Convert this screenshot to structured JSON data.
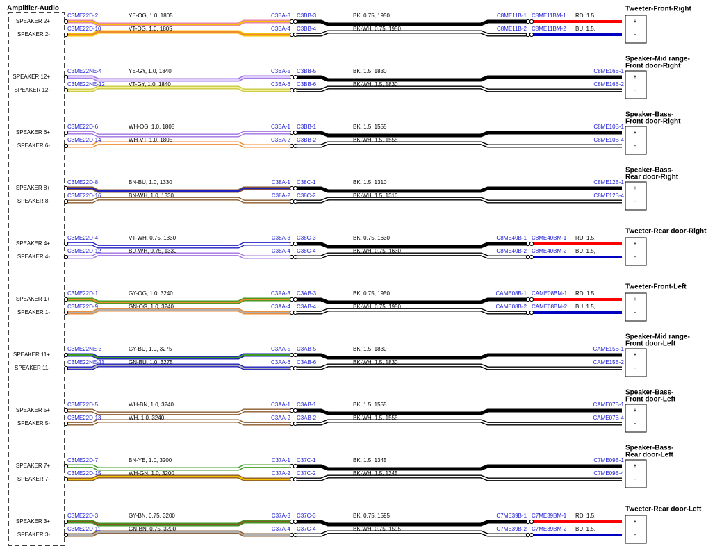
{
  "amplifier": {
    "label": "Amplifier-Audio"
  },
  "circuits": [
    {
      "device": [
        "Tweeter-Front-Right"
      ],
      "pins": [
        "+",
        "-"
      ],
      "wires": [
        {
          "pin": "SPEAKER 2+",
          "amp_connector": "C3ME22D-2",
          "harness_wire": "YE-OG, 1.0, 1805",
          "harness_color": [
            "#e87fb0",
            "#f5c400"
          ],
          "inline_left": "C3BA-3",
          "inline_right": "C3BB-3",
          "door_wire": "BK, 0.75, 1950",
          "door_color": [
            "#000000",
            "#000000"
          ],
          "device_connector": "C8ME11B-1",
          "tweeter_connector": "C8ME11BM-1",
          "tweeter_wire": "RD, 1.5,",
          "tweeter_color": "#ff0000"
        },
        {
          "pin": "SPEAKER 2-",
          "amp_connector": "C3ME22D-10",
          "harness_wire": "VT-OG, 1.0, 1805",
          "harness_color": [
            "#f5c400",
            "#f08a30"
          ],
          "inline_left": "C3BA-4",
          "inline_right": "C3BB-4",
          "door_wire": "BK-WH, 0.75, 1950",
          "door_color": [
            "#000000",
            "#ffffff"
          ],
          "device_connector": "C8ME11B-2",
          "tweeter_connector": "C8ME11BM-2",
          "tweeter_wire": "BU, 1.5,",
          "tweeter_color": "#0000c0"
        }
      ]
    },
    {
      "device": [
        "Speaker-Mid range-",
        "Front door-Right"
      ],
      "pins": [
        "+",
        "-"
      ],
      "wires": [
        {
          "pin": "SPEAKER 12+",
          "amp_connector": "C3ME22NE-4",
          "harness_wire": "YE-GY, 1.0, 1840",
          "harness_color": [
            "#a070e0",
            "#e0d0ff"
          ],
          "inline_left": "C3BA-5",
          "inline_right": "C3BB-5",
          "door_wire": "BK, 1.5, 1830",
          "door_color": [
            "#000000",
            "#000000"
          ],
          "device_connector": "C8ME16B-1"
        },
        {
          "pin": "SPEAKER 12-",
          "amp_connector": "C3ME22NE-12",
          "harness_wire": "VT-GY, 1.0, 1840",
          "harness_color": [
            "#c8c840",
            "#f5f0a0"
          ],
          "inline_left": "C3BA-6",
          "inline_right": "C3BB-6",
          "door_wire": "BK-WH, 1.5, 1830",
          "door_color": [
            "#000000",
            "#ffffff"
          ],
          "device_connector": "C8ME16B-2"
        }
      ]
    },
    {
      "device": [
        "Speaker-Bass-",
        "Front door-Right"
      ],
      "pins": [
        "+",
        "-"
      ],
      "wires": [
        {
          "pin": "SPEAKER 6+",
          "amp_connector": "C3ME22D-6",
          "harness_wire": "WH-OG, 1.0, 1805",
          "harness_color": [
            "#a070e0",
            "#ffffff"
          ],
          "inline_left": "C3BA-1",
          "inline_right": "C3BB-1",
          "door_wire": "BK, 1.5, 1555",
          "door_color": [
            "#000000",
            "#000000"
          ],
          "device_connector": "C8ME10B-1"
        },
        {
          "pin": "SPEAKER 6-",
          "amp_connector": "C3ME22D-14",
          "harness_wire": "WH-VT, 1.0, 1805",
          "harness_color": [
            "#f08a30",
            "#ffffff"
          ],
          "inline_left": "C3BA-2",
          "inline_right": "C3BB-2",
          "door_wire": "BK-WH, 1.5, 1555",
          "door_color": [
            "#000000",
            "#ffffff"
          ],
          "device_connector": "C8ME10B-4"
        }
      ]
    },
    {
      "device": [
        "Speaker-Bass-",
        "Rear door-Right"
      ],
      "pins": [
        "+",
        "-"
      ],
      "wires": [
        {
          "pin": "SPEAKER 8+",
          "amp_connector": "C3ME22D-8",
          "harness_wire": "BN-BU, 1.0, 1330",
          "harness_color": [
            "#8b5a2b",
            "#2020c0"
          ],
          "inline_left": "C38A-1",
          "inline_right": "C38C-1",
          "door_wire": "BK, 1.5, 1310",
          "door_color": [
            "#000000",
            "#000000"
          ],
          "device_connector": "C8ME12B-1"
        },
        {
          "pin": "SPEAKER 8-",
          "amp_connector": "C3ME22D-16",
          "harness_wire": "BN-WH, 1.0, 1330",
          "harness_color": [
            "#8b5a2b",
            "#ffffff"
          ],
          "inline_left": "C38A-2",
          "inline_right": "C38C-2",
          "door_wire": "BK-WH, 1.5, 1310",
          "door_color": [
            "#000000",
            "#ffffff"
          ],
          "device_connector": "C8ME12B-4"
        }
      ]
    },
    {
      "device": [
        "Tweeter-Rear door-Right"
      ],
      "pins": [
        "+",
        "-"
      ],
      "wires": [
        {
          "pin": "SPEAKER 4+",
          "amp_connector": "C3ME22D-4",
          "harness_wire": "VT-WH, 0.75, 1330",
          "harness_color": [
            "#2020c0",
            "#ffffff"
          ],
          "inline_left": "C38A-3",
          "inline_right": "C38C-3",
          "door_wire": "BK, 0.75, 1630",
          "door_color": [
            "#000000",
            "#000000"
          ],
          "device_connector": "C8ME40B-1",
          "tweeter_connector": "C8ME40BM-1",
          "tweeter_wire": "RD, 1.5,",
          "tweeter_color": "#ff0000"
        },
        {
          "pin": "SPEAKER 4-",
          "amp_connector": "C3ME22D-12",
          "harness_wire": "BU-WH, 0.75, 1330",
          "harness_color": [
            "#a070e0",
            "#ffffff"
          ],
          "inline_left": "C38A-4",
          "inline_right": "C38C-4",
          "door_wire": "BK-WH, 0.75, 1630",
          "door_color": [
            "#000000",
            "#ffffff"
          ],
          "device_connector": "C8ME40B-2",
          "tweeter_connector": "C8ME40BM-2",
          "tweeter_wire": "BU, 1.5,",
          "tweeter_color": "#0000c0"
        }
      ]
    },
    {
      "device": [
        "Tweeter-Front-Left"
      ],
      "pins": [
        "+",
        "-"
      ],
      "wires": [
        {
          "pin": "SPEAKER 1+",
          "amp_connector": "C3ME22D-1",
          "harness_wire": "GY-OG, 1.0, 3240",
          "harness_color": [
            "#3a9a20",
            "#f08a30"
          ],
          "inline_left": "C3AA-3",
          "inline_right": "C3AB-3",
          "door_wire": "BK, 0.75, 1950",
          "door_color": [
            "#000000",
            "#000000"
          ],
          "device_connector": "CAME08B-1",
          "tweeter_connector": "CAME08BM-1",
          "tweeter_wire": "RD, 1.5,",
          "tweeter_color": "#ff0000"
        },
        {
          "pin": "SPEAKER 1-",
          "amp_connector": "C3ME22D-9",
          "harness_wire": "GN-OG, 1.0, 3240",
          "harness_color": [
            "#f08a30",
            "#b0b0b0"
          ],
          "inline_left": "C3AA-4",
          "inline_right": "C3AB-4",
          "door_wire": "BK-WH, 0.75, 1950",
          "door_color": [
            "#000000",
            "#ffffff"
          ],
          "device_connector": "CAME08B-2",
          "tweeter_connector": "CAME08BM-2",
          "tweeter_wire": "BU, 1.5,",
          "tweeter_color": "#0000c0"
        }
      ]
    },
    {
      "device": [
        "Speaker-Mid range-",
        "Front door-Left"
      ],
      "pins": [
        "+",
        "-"
      ],
      "wires": [
        {
          "pin": "SPEAKER 11+",
          "amp_connector": "C3ME22NE-3",
          "harness_wire": "GY-BU, 1.0, 3275",
          "harness_color": [
            "#2020c0",
            "#3a9a20"
          ],
          "inline_left": "C3AA-5",
          "inline_right": "C3AB-5",
          "door_wire": "BK, 1.5, 1830",
          "door_color": [
            "#000000",
            "#000000"
          ],
          "device_connector": "CAME15B-1"
        },
        {
          "pin": "SPEAKER 11-",
          "amp_connector": "C3ME22NE-11",
          "harness_wire": "GN-BU, 1.0, 3275",
          "harness_color": [
            "#2020c0",
            "#b0b0b0"
          ],
          "inline_left": "C3AA-6",
          "inline_right": "C3AB-6",
          "door_wire": "BK-WH, 1.5, 1830",
          "door_color": [
            "#000000",
            "#ffffff"
          ],
          "device_connector": "CAME15B-2"
        }
      ]
    },
    {
      "device": [
        "Speaker-Bass-",
        "Front door-Left"
      ],
      "pins": [
        "+",
        "-"
      ],
      "wires": [
        {
          "pin": "SPEAKER 5+",
          "amp_connector": "C3ME22D-5",
          "harness_wire": "WH-BN, 1.0, 3240",
          "harness_color": [
            "#8b5a2b",
            "#ffffff"
          ],
          "inline_left": "C3AA-1",
          "inline_right": "C3AB-1",
          "door_wire": "BK, 1.5, 1555",
          "door_color": [
            "#000000",
            "#000000"
          ],
          "device_connector": "CAME07B-1"
        },
        {
          "pin": "SPEAKER 5-",
          "amp_connector": "C3ME22D-13",
          "harness_wire": "WH, 1.0, 3240",
          "harness_color": [
            "#8b5a2b",
            "#ffffff"
          ],
          "inline_left": "C3AA-2",
          "inline_right": "C3AB-2",
          "door_wire": "BK-WH, 1.5, 1555",
          "door_color": [
            "#000000",
            "#ffffff"
          ],
          "device_connector": "CAME07B-4"
        }
      ]
    },
    {
      "device": [
        "Speaker-Bass-",
        "Rear door-Left"
      ],
      "pins": [
        "+",
        "-"
      ],
      "wires": [
        {
          "pin": "SPEAKER 7+",
          "amp_connector": "C3ME22D-7",
          "harness_wire": "BN-YE, 1.0, 3200",
          "harness_color": [
            "#3a9a20",
            "#ffffff"
          ],
          "inline_left": "C37A-1",
          "inline_right": "C37C-1",
          "door_wire": "BK, 1.5, 1345",
          "door_color": [
            "#000000",
            "#000000"
          ],
          "device_connector": "C7ME09B-1"
        },
        {
          "pin": "SPEAKER 7-",
          "amp_connector": "C3ME22D-15",
          "harness_wire": "WH-GN, 1.0, 3200",
          "harness_color": [
            "#8b5a2b",
            "#f5c400"
          ],
          "inline_left": "C37A-2",
          "inline_right": "C37C-2",
          "door_wire": "BK-WH, 1.5, 1345",
          "door_color": [
            "#000000",
            "#ffffff"
          ],
          "device_connector": "C7ME09B-4"
        }
      ]
    },
    {
      "device": [
        "Tweeter-Rear door-Left"
      ],
      "pins": [
        "+",
        "-"
      ],
      "wires": [
        {
          "pin": "SPEAKER 3+",
          "amp_connector": "C3ME22D-3",
          "harness_wire": "GY-BN, 0.75, 3200",
          "harness_color": [
            "#3a9a20",
            "#8b5a2b"
          ],
          "inline_left": "C37A-3",
          "inline_right": "C37C-3",
          "door_wire": "BK, 0.75, 1595",
          "door_color": [
            "#000000",
            "#000000"
          ],
          "device_connector": "C7ME39B-1",
          "tweeter_connector": "C7ME39BM-1",
          "tweeter_wire": "RD, 1.5,",
          "tweeter_color": "#ff0000"
        },
        {
          "pin": "SPEAKER 3-",
          "amp_connector": "C3ME22D-11",
          "harness_wire": "GN-BN, 0.75, 3200",
          "harness_color": [
            "#8b5a2b",
            "#b0b0b0"
          ],
          "inline_left": "C37A-4",
          "inline_right": "C37C-4",
          "door_wire": "BK-WH, 0.75, 1595",
          "door_color": [
            "#000000",
            "#ffffff"
          ],
          "device_connector": "C7ME39B-2",
          "tweeter_connector": "C7ME39BM-2",
          "tweeter_wire": "BU, 1.5,",
          "tweeter_color": "#0000c0"
        }
      ]
    }
  ]
}
